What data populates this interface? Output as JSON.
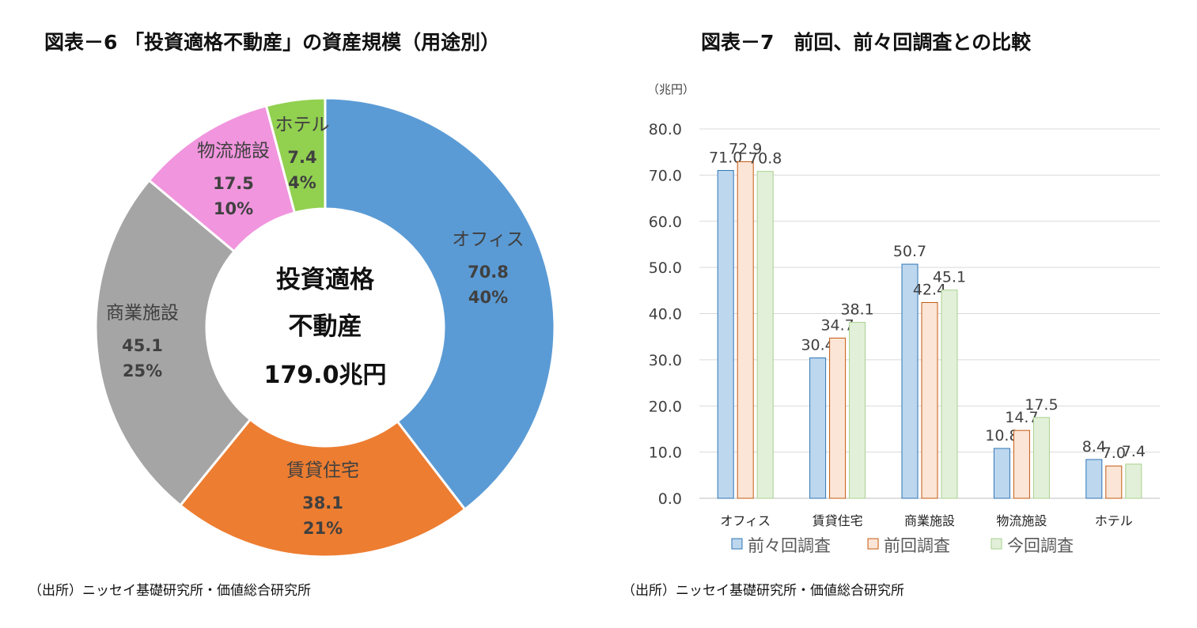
{
  "titles": {
    "left": "図表－6 「投資適格不動産」の資産規模（用途別）",
    "right": "図表－7　前回、前々回調査との比較"
  },
  "sources": {
    "left": "（出所）ニッセイ基礎研究所・価値総合研究所",
    "right": "（出所）ニッセイ基礎研究所・価値総合研究所"
  },
  "chart_data": [
    {
      "type": "pie",
      "center_lines": [
        "投資適格",
        "不動産",
        "179.0兆円"
      ],
      "slices": [
        {
          "label": "オフィス",
          "value": 70.8,
          "value_text": "70.8",
          "pct": "40%",
          "color": "#5b9bd5"
        },
        {
          "label": "賃貸住宅",
          "value": 38.1,
          "value_text": "38.1",
          "pct": "21%",
          "color": "#ed7d31"
        },
        {
          "label": "商業施設",
          "value": 45.1,
          "value_text": "45.1",
          "pct": "25%",
          "color": "#a5a5a5"
        },
        {
          "label": "物流施設",
          "value": 17.5,
          "value_text": "17.5",
          "pct": "10%",
          "color": "#f195de"
        },
        {
          "label": "ホテル",
          "value": 7.4,
          "value_text": "7.4",
          "pct": "4%",
          "color": "#92d050"
        }
      ]
    },
    {
      "type": "bar",
      "unit_label": "（兆円）",
      "categories": [
        "オフィス",
        "賃貸住宅",
        "商業施設",
        "物流施設",
        "ホテル"
      ],
      "ylim": [
        0,
        80
      ],
      "yticks": [
        "0.0",
        "10.0",
        "20.0",
        "30.0",
        "40.0",
        "50.0",
        "60.0",
        "70.0",
        "80.0"
      ],
      "grid": true,
      "legend_position": "bottom",
      "series": [
        {
          "name": "前々回調査",
          "values": [
            71.0,
            30.4,
            50.7,
            10.8,
            8.4
          ],
          "labels": [
            "71.0",
            "30.4",
            "50.7",
            "10.8",
            "8.4"
          ],
          "fill": "#bdd7ee",
          "stroke": "#2e75b6"
        },
        {
          "name": "前回調査",
          "values": [
            72.9,
            34.7,
            42.4,
            14.7,
            7.0
          ],
          "labels": [
            "72.9",
            "34.7",
            "42.4",
            "14.7",
            "7.0"
          ],
          "fill": "#fbe5d6",
          "stroke": "#c55a11"
        },
        {
          "name": "今回調査",
          "values": [
            70.8,
            38.1,
            45.1,
            17.5,
            7.4
          ],
          "labels": [
            "70.8",
            "38.1",
            "45.1",
            "17.5",
            "7.4"
          ],
          "fill": "#e2f0d9",
          "stroke": "#a9d18e"
        }
      ]
    }
  ]
}
